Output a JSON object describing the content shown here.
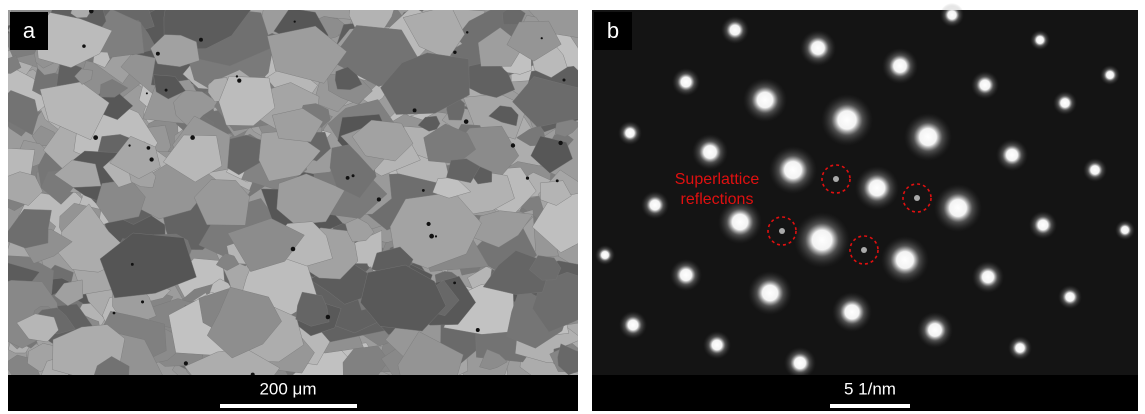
{
  "panels": [
    {
      "label": "a",
      "scale_bar": "200 μm"
    },
    {
      "label": "b",
      "scale_bar": "5 1/nm",
      "annotation": [
        "Superlattice",
        "reflections"
      ]
    }
  ]
}
